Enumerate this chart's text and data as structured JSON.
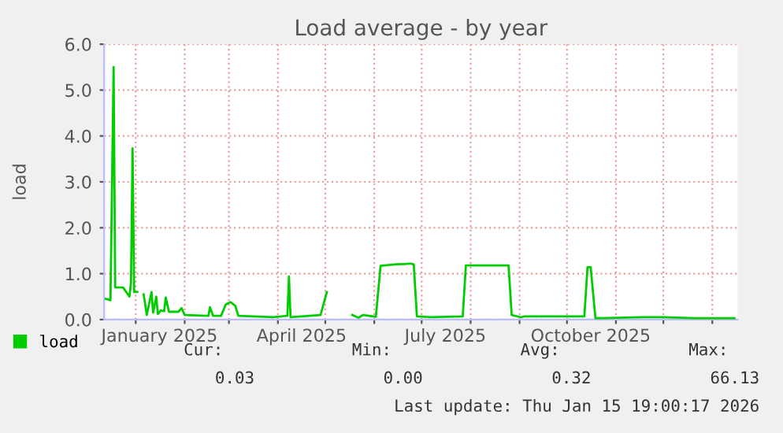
{
  "chart_data": {
    "type": "line",
    "title": "Load average - by year",
    "ylabel": "load",
    "x": [
      "2024-12-13",
      "2024-12-16",
      "2024-12-18",
      "2024-12-19",
      "2024-12-24",
      "2024-12-28",
      "2024-12-29",
      "2024-12-30",
      "2024-12-31",
      "2025-01-02",
      "2025-01-03",
      "2025-01-06",
      "2025-01-08",
      "2025-01-11",
      "2025-01-12",
      "2025-01-14",
      "2025-01-15",
      "2025-01-17",
      "2025-01-19",
      "2025-01-20",
      "2025-01-22",
      "2025-01-28",
      "2025-01-30",
      "2025-02-01",
      "2025-02-16",
      "2025-02-17",
      "2025-02-19",
      "2025-02-24",
      "2025-02-27",
      "2025-03-02",
      "2025-03-05",
      "2025-03-07",
      "2025-03-29",
      "2025-04-07",
      "2025-04-08",
      "2025-04-09",
      "2025-04-28",
      "2025-05-02",
      "2025-05-03",
      "2025-05-18",
      "2025-05-22",
      "2025-05-25",
      "2025-06-02",
      "2025-06-05",
      "2025-06-14",
      "2025-06-24",
      "2025-06-26",
      "2025-06-28",
      "2025-07-07",
      "2025-07-27",
      "2025-07-29",
      "2025-08-25",
      "2025-08-27",
      "2025-09-02",
      "2025-09-04",
      "2025-10-12",
      "2025-10-14",
      "2025-10-16",
      "2025-10-19",
      "2025-11-18",
      "2025-12-01",
      "2025-12-21",
      "2026-01-15"
    ],
    "series": [
      {
        "name": "load",
        "color": "#00cc00",
        "values": [
          0.45,
          0.42,
          5.5,
          0.7,
          0.7,
          0.5,
          0.8,
          3.73,
          0.6,
          0.6,
          null,
          0.55,
          0.1,
          0.6,
          0.15,
          0.5,
          0.12,
          0.2,
          0.18,
          0.48,
          0.17,
          0.17,
          0.25,
          0.1,
          0.08,
          0.27,
          0.08,
          0.08,
          0.33,
          0.38,
          0.3,
          0.08,
          0.05,
          0.08,
          0.94,
          0.05,
          0.1,
          0.6,
          null,
          0.1,
          0.04,
          0.1,
          0.06,
          1.17,
          1.2,
          1.22,
          1.2,
          0.07,
          0.05,
          0.07,
          1.18,
          1.18,
          0.1,
          0.05,
          0.07,
          0.07,
          1.14,
          1.14,
          0.03,
          0.05,
          0.05,
          0.03,
          0.03
        ]
      }
    ],
    "xlim": [
      "2024-12-12",
      "2026-01-17"
    ],
    "xticks": [
      {
        "value": "2025-01-01",
        "label": null
      },
      {
        "value": "2025-01-16",
        "label": "January 2025"
      },
      {
        "value": "2025-02-01",
        "label": null
      },
      {
        "value": "2025-03-01",
        "label": null
      },
      {
        "value": "2025-04-01",
        "label": null
      },
      {
        "value": "2025-04-16",
        "label": "April 2025"
      },
      {
        "value": "2025-05-01",
        "label": null
      },
      {
        "value": "2025-06-01",
        "label": null
      },
      {
        "value": "2025-07-01",
        "label": null
      },
      {
        "value": "2025-07-16",
        "label": "July 2025"
      },
      {
        "value": "2025-08-01",
        "label": null
      },
      {
        "value": "2025-09-01",
        "label": null
      },
      {
        "value": "2025-10-01",
        "label": null
      },
      {
        "value": "2025-10-16",
        "label": "October 2025"
      },
      {
        "value": "2025-11-01",
        "label": null
      },
      {
        "value": "2025-12-01",
        "label": null
      },
      {
        "value": "2026-01-01",
        "label": null
      }
    ],
    "ylim": [
      0,
      6
    ],
    "yticks": [
      {
        "value": 0,
        "label": "0.0"
      },
      {
        "value": 1,
        "label": "1.0"
      },
      {
        "value": 2,
        "label": "2.0"
      },
      {
        "value": 3,
        "label": "3.0"
      },
      {
        "value": 4,
        "label": "4.0"
      },
      {
        "value": 5,
        "label": "5.0"
      },
      {
        "value": 6,
        "label": "6.0"
      }
    ],
    "grid": true,
    "legend": "bottom",
    "marker": "none",
    "line_style": "solid",
    "annotations": [
      "Cur:",
      "Min:",
      "Avg:",
      "Max:",
      "0.03",
      "0.00",
      "0.32",
      "66.13",
      "Last update: Thu Jan 15 19:00:17 2026"
    ]
  }
}
